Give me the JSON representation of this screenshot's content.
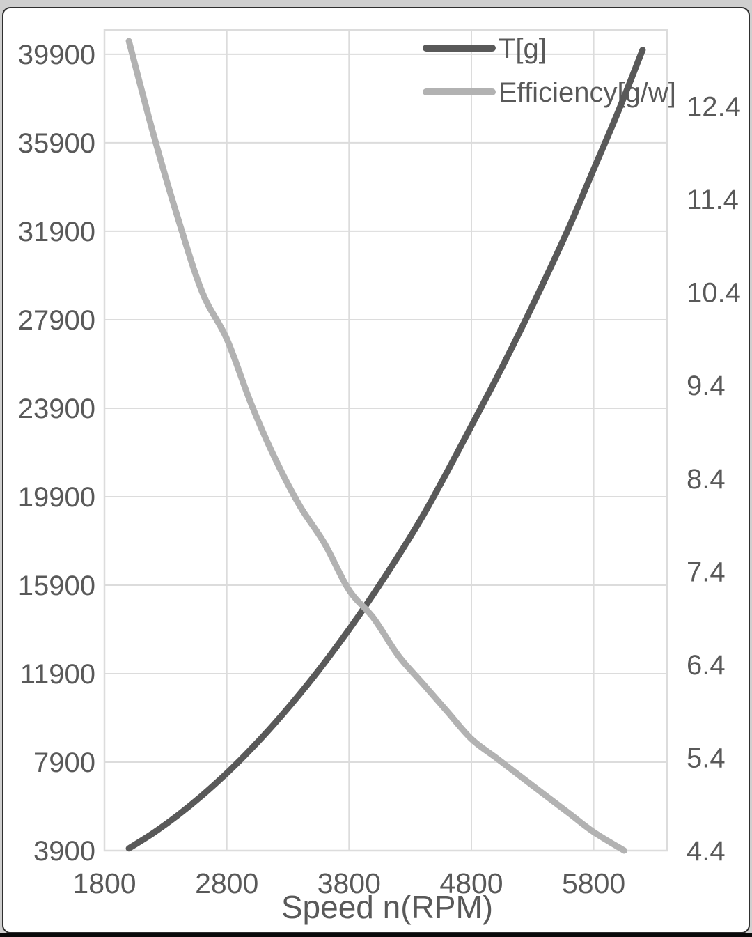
{
  "frame": {
    "outer_bg": "#cfcfcf",
    "border_color": "#2f2f2f",
    "bottom_bar_color": "#0a0a0a",
    "chart_bg": "#ffffff",
    "grid_color": "#dcdcdc",
    "text_color": "#595959"
  },
  "chart_data": {
    "type": "line",
    "title": "",
    "legend_position": "top-right-inside",
    "grid": true,
    "x_axis": {
      "label": "Speed n(RPM)",
      "min": 1800,
      "max": 6400,
      "tick_values": [
        1800,
        2800,
        3800,
        4800,
        5800
      ],
      "tick_labels": [
        "1800",
        "2800",
        "3800",
        "4800",
        "5800"
      ]
    },
    "y_axis_left": {
      "label": "",
      "min": 3900,
      "max": 41000,
      "tick_values": [
        39900,
        35900,
        31900,
        27900,
        23900,
        19900,
        15900,
        11900,
        7900,
        3900
      ],
      "tick_labels": [
        "39900",
        "35900",
        "31900",
        "27900",
        "23900",
        "19900",
        "15900",
        "11900",
        "7900",
        "3900"
      ]
    },
    "y_axis_right": {
      "label": "",
      "min": 4.4,
      "max": 13.22,
      "tick_values": [
        12.4,
        11.4,
        10.4,
        9.4,
        8.4,
        7.4,
        6.4,
        5.4,
        4.4
      ],
      "tick_labels": [
        "12.4",
        "11.4",
        "10.4",
        "9.4",
        "8.4",
        "7.4",
        "6.4",
        "5.4",
        "4.4"
      ]
    },
    "series": [
      {
        "name": "T[g]",
        "axis": "left",
        "color": "#595959",
        "stroke_width": 9,
        "x": [
          2000,
          2200,
          2400,
          2600,
          2800,
          3000,
          3200,
          3400,
          3600,
          3800,
          4000,
          4200,
          4400,
          4600,
          4800,
          5000,
          5200,
          5400,
          5600,
          5800,
          6000,
          6200
        ],
        "y": [
          4000,
          4700,
          5500,
          6400,
          7400,
          8500,
          9700,
          11000,
          12400,
          13900,
          15500,
          17200,
          19000,
          21000,
          23100,
          25200,
          27400,
          29700,
          32100,
          34700,
          37300,
          40100
        ]
      },
      {
        "name": "Efficiency[g/w]",
        "axis": "right",
        "color": "#b2b2b2",
        "stroke_width": 9,
        "x": [
          2000,
          2200,
          2400,
          2600,
          2800,
          3000,
          3200,
          3400,
          3600,
          3800,
          4000,
          4200,
          4400,
          4600,
          4800,
          5000,
          5200,
          5400,
          5600,
          5800,
          6050
        ],
        "y": [
          13.1,
          12.1,
          11.2,
          10.4,
          9.9,
          9.2,
          8.6,
          8.1,
          7.7,
          7.2,
          6.9,
          6.5,
          6.2,
          5.9,
          5.6,
          5.4,
          5.2,
          5.0,
          4.8,
          4.6,
          4.4
        ]
      }
    ]
  }
}
